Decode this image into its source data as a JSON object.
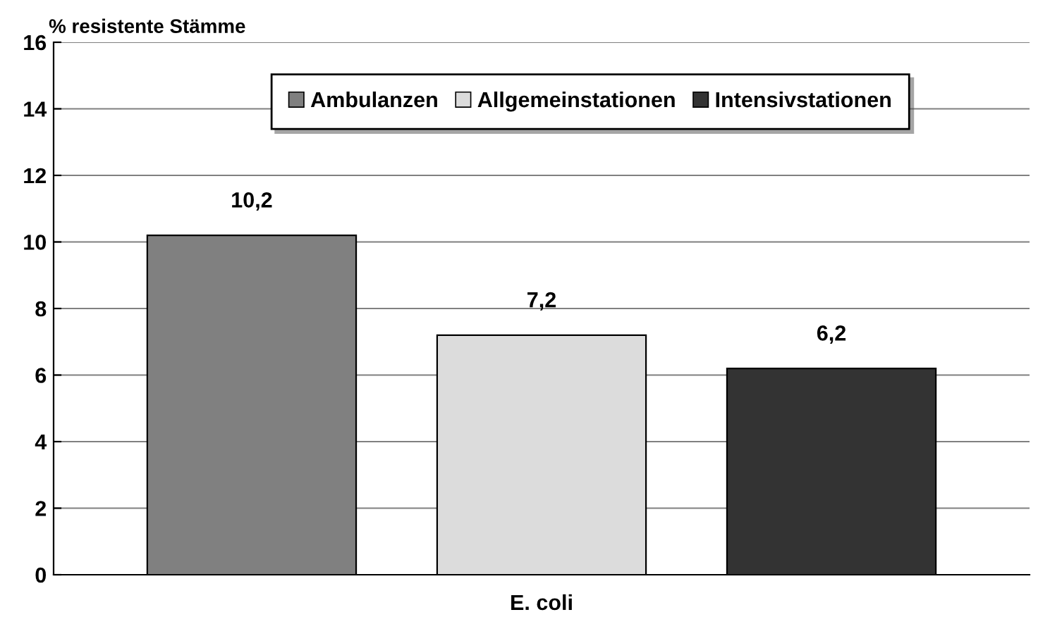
{
  "chart_data": {
    "type": "bar",
    "ylabel": "% resistente Stämme",
    "categories": [
      "E. coli"
    ],
    "series": [
      {
        "name": "Ambulanzen",
        "color": "#808080",
        "values": [
          10.2
        ],
        "value_labels": [
          "10,2"
        ]
      },
      {
        "name": "Allgemeinstationen",
        "color": "#dcdcdc",
        "values": [
          7.2
        ],
        "value_labels": [
          "7,2"
        ]
      },
      {
        "name": "Intensivstationen",
        "color": "#333333",
        "values": [
          6.2
        ],
        "value_labels": [
          "6,2"
        ]
      }
    ],
    "ylim": [
      0,
      16
    ],
    "yticks": [
      0,
      2,
      4,
      6,
      8,
      10,
      12,
      14,
      16
    ],
    "grid": "y",
    "legend": "top"
  }
}
